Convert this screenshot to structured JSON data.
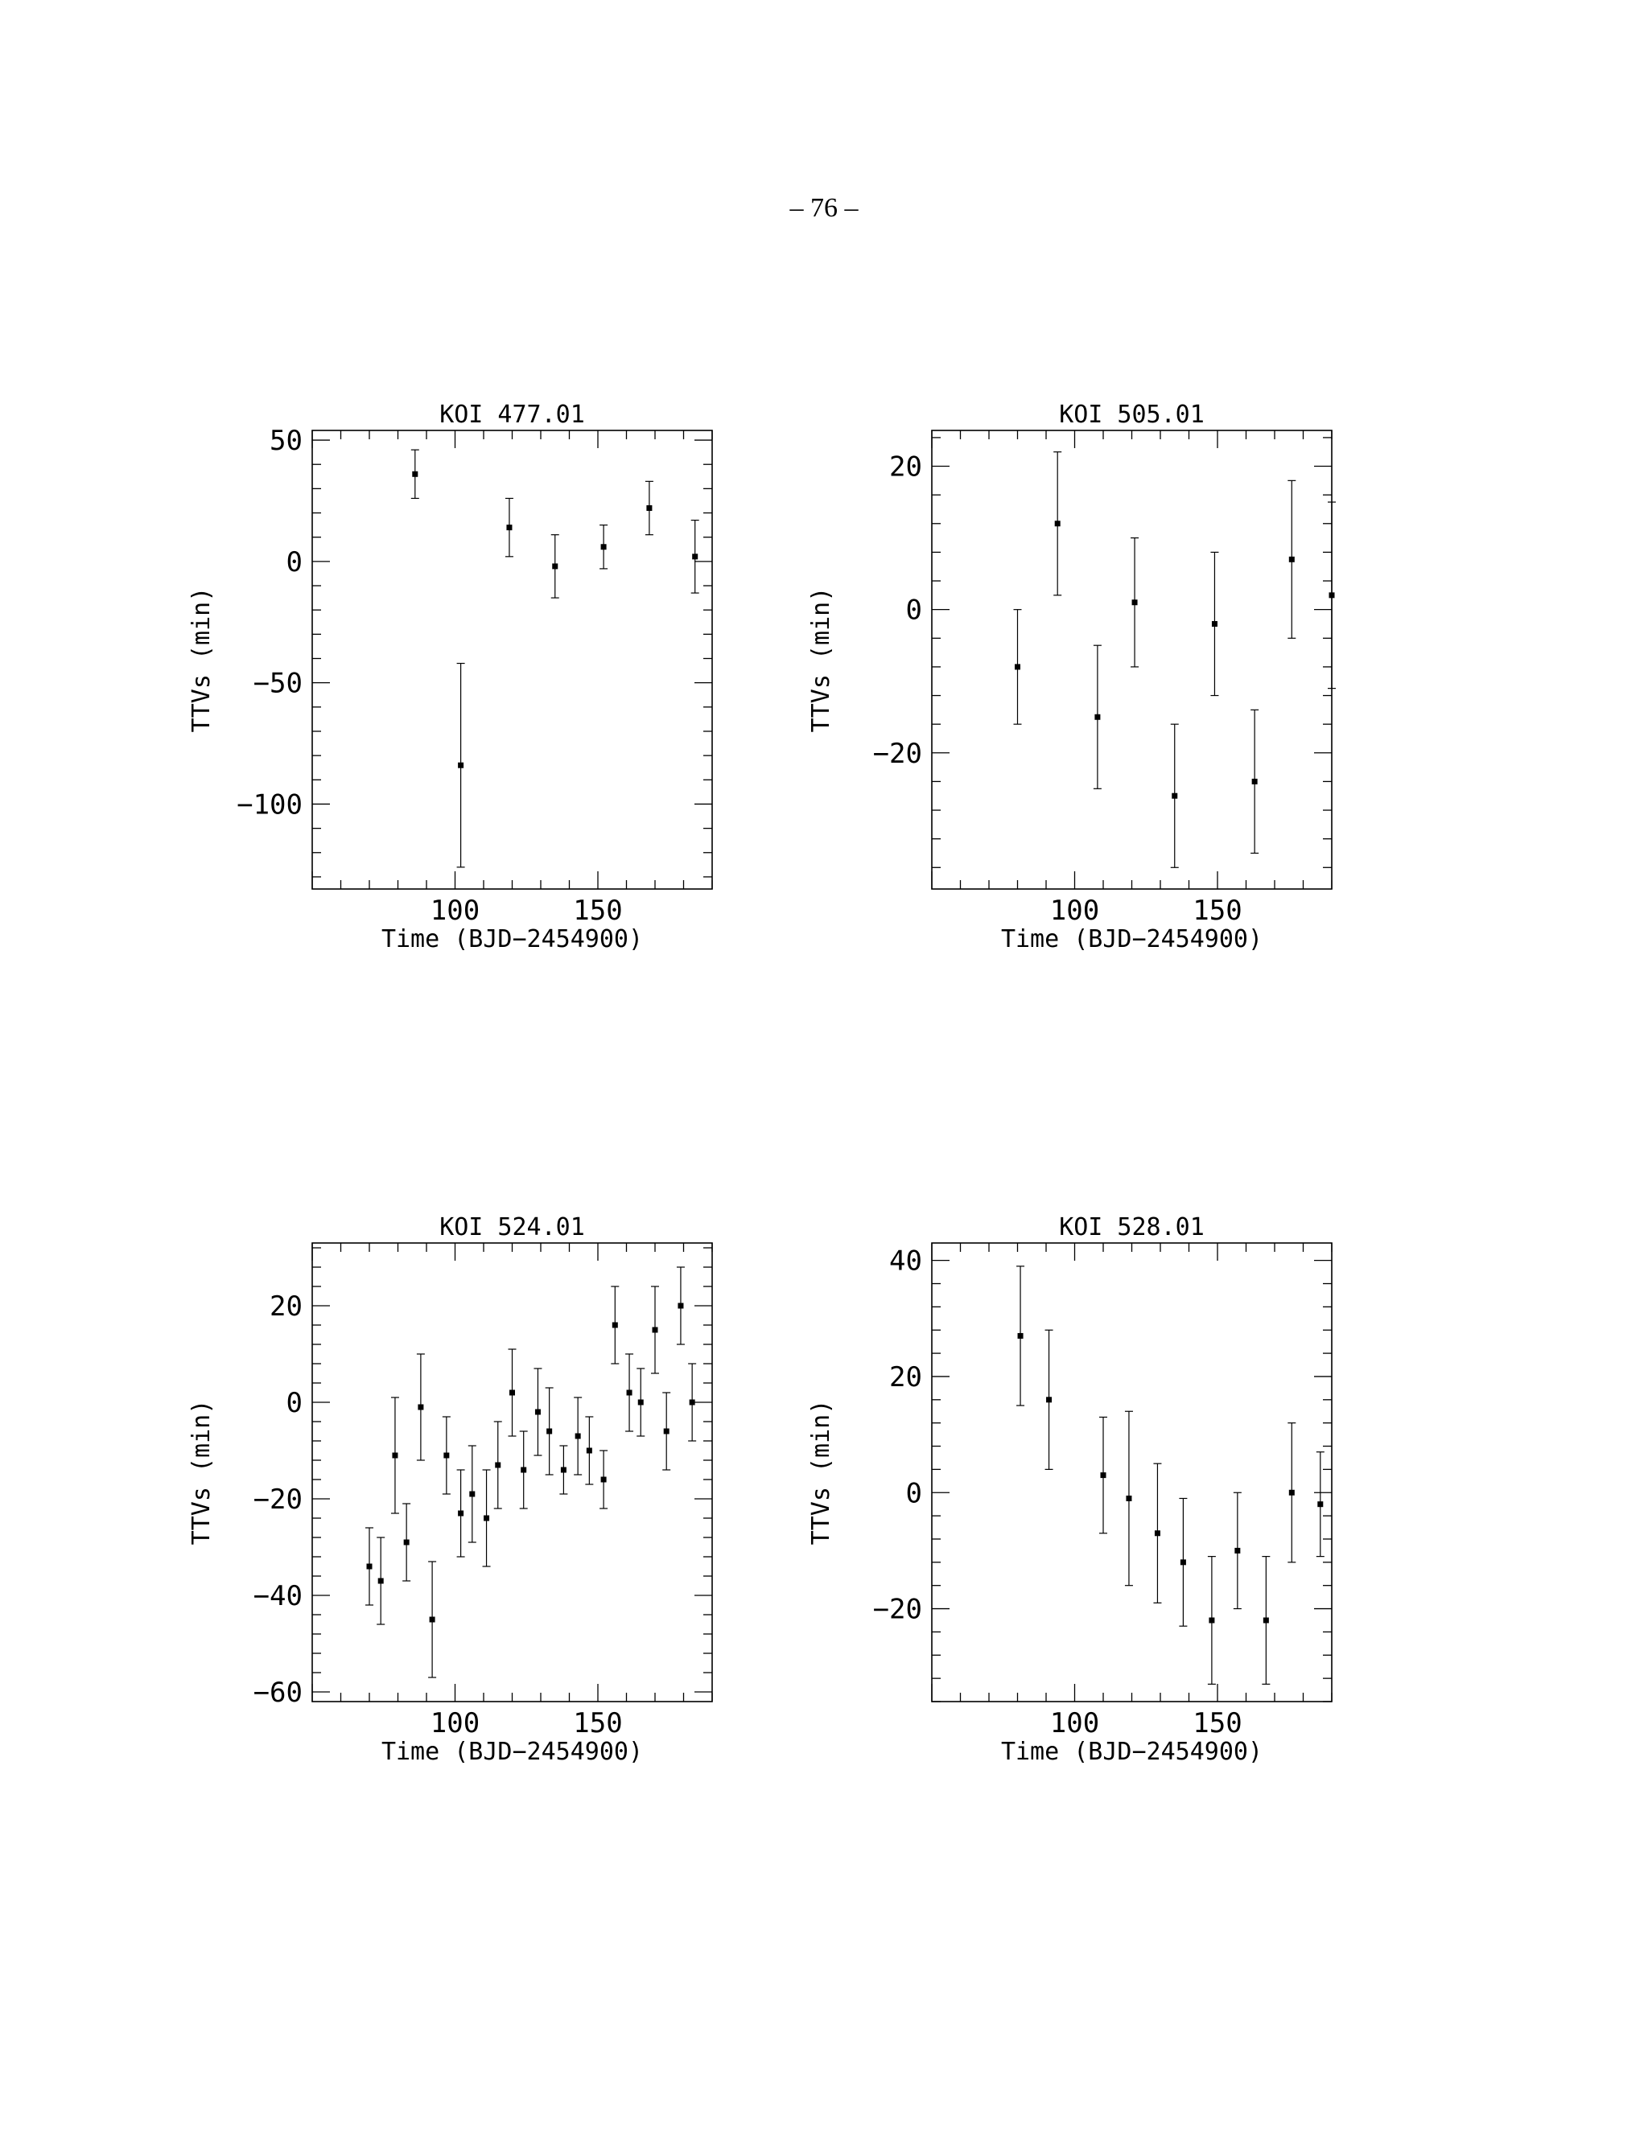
{
  "page_number": "– 76 –",
  "chart_data": [
    {
      "type": "scatter",
      "title": "KOI 477.01",
      "xlabel": "Time (BJD−2454900)",
      "ylabel": "TTVs (min)",
      "xlim": [
        50,
        190
      ],
      "ylim": [
        -135,
        54
      ],
      "xticks": [
        100,
        150
      ],
      "yticks": [
        50,
        0,
        -50,
        -100
      ],
      "error_bars": true,
      "series": [
        {
          "x": [
            86,
            102,
            119,
            135,
            152,
            168,
            184
          ],
          "y": [
            36,
            -84,
            14,
            -2,
            6,
            22,
            2
          ],
          "yerr": [
            10,
            42,
            12,
            13,
            9,
            11,
            15
          ]
        }
      ]
    },
    {
      "type": "scatter",
      "title": "KOI 505.01",
      "xlabel": "Time (BJD−2454900)",
      "ylabel": "TTVs (min)",
      "xlim": [
        50,
        190
      ],
      "ylim": [
        -39,
        25
      ],
      "xticks": [
        100,
        150
      ],
      "yticks": [
        20,
        0,
        -20
      ],
      "error_bars": true,
      "series": [
        {
          "x": [
            80,
            94,
            108,
            121,
            135,
            149,
            163,
            176,
            190
          ],
          "y": [
            -8,
            12,
            -15,
            1,
            -26,
            -2,
            -24,
            7,
            2
          ],
          "yerr": [
            8,
            10,
            10,
            9,
            10,
            10,
            10,
            11,
            13
          ]
        }
      ]
    },
    {
      "type": "scatter",
      "title": "KOI 524.01",
      "xlabel": "Time (BJD−2454900)",
      "ylabel": "TTVs (min)",
      "xlim": [
        50,
        190
      ],
      "ylim": [
        -62,
        33
      ],
      "xticks": [
        100,
        150
      ],
      "yticks": [
        20,
        0,
        -20,
        -40,
        -60
      ],
      "error_bars": true,
      "series": [
        {
          "x": [
            70,
            74,
            79,
            83,
            88,
            92,
            97,
            102,
            106,
            111,
            115,
            120,
            124,
            129,
            133,
            138,
            143,
            147,
            152,
            156,
            161,
            165,
            170,
            174,
            179,
            183
          ],
          "y": [
            -34,
            -37,
            -11,
            -29,
            -1,
            -45,
            -11,
            -23,
            -19,
            -24,
            -13,
            2,
            -14,
            -2,
            -6,
            -14,
            -7,
            -10,
            -16,
            16,
            2,
            0,
            15,
            -6,
            20,
            0
          ],
          "yerr": [
            8,
            9,
            12,
            8,
            11,
            12,
            8,
            9,
            10,
            10,
            9,
            9,
            8,
            9,
            9,
            5,
            8,
            7,
            6,
            8,
            8,
            7,
            9,
            8,
            8,
            8
          ]
        }
      ]
    },
    {
      "type": "scatter",
      "title": "KOI 528.01",
      "xlabel": "Time (BJD−2454900)",
      "ylabel": "TTVs (min)",
      "xlim": [
        50,
        190
      ],
      "ylim": [
        -36,
        43
      ],
      "xticks": [
        100,
        150
      ],
      "yticks": [
        40,
        20,
        0,
        -20
      ],
      "error_bars": true,
      "series": [
        {
          "x": [
            81,
            91,
            110,
            119,
            129,
            138,
            148,
            157,
            167,
            176,
            186
          ],
          "y": [
            27,
            16,
            3,
            -1,
            -7,
            -12,
            -22,
            -10,
            -22,
            0,
            -2
          ],
          "yerr": [
            12,
            12,
            10,
            15,
            12,
            11,
            11,
            10,
            11,
            12,
            9
          ]
        }
      ]
    }
  ]
}
